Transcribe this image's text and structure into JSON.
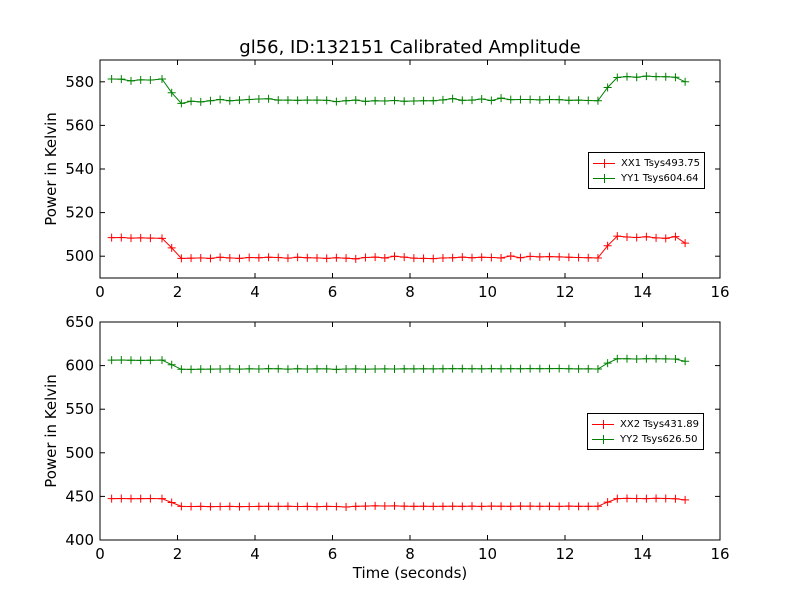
{
  "title": "gl56, ID:132151 Calibrated Amplitude",
  "colors": {
    "red": "#ff0000",
    "green": "#008000"
  },
  "chart_data": [
    {
      "type": "line",
      "ylabel": "Power in Kelvin",
      "xlabel": "",
      "xlim": [
        0,
        16
      ],
      "ylim": [
        490,
        590
      ],
      "xticks": [
        "0",
        "2",
        "4",
        "6",
        "8",
        "10",
        "12",
        "14",
        "16"
      ],
      "yticks": [
        "500",
        "520",
        "540",
        "560",
        "580"
      ],
      "ytick_values": [
        500,
        520,
        540,
        560,
        580
      ],
      "legend_position": "center-right",
      "x": [
        0.3,
        0.55,
        0.8,
        1.05,
        1.3,
        1.6,
        1.85,
        2.1,
        2.35,
        2.6,
        2.85,
        3.1,
        3.35,
        3.6,
        3.85,
        4.1,
        4.35,
        4.6,
        4.85,
        5.1,
        5.35,
        5.6,
        5.85,
        6.1,
        6.35,
        6.6,
        6.85,
        7.1,
        7.35,
        7.6,
        7.85,
        8.1,
        8.35,
        8.6,
        8.85,
        9.1,
        9.35,
        9.6,
        9.85,
        10.1,
        10.35,
        10.6,
        10.85,
        11.1,
        11.35,
        11.6,
        11.85,
        12.1,
        12.35,
        12.6,
        12.85,
        13.1,
        13.35,
        13.6,
        13.85,
        14.1,
        14.35,
        14.6,
        14.85,
        15.1
      ],
      "series": [
        {
          "name": "XX1 Tsys493.75",
          "color": "red",
          "values": [
            508.5,
            508.6,
            508.3,
            508.4,
            508.3,
            508.2,
            503.8,
            499.0,
            499.1,
            499.2,
            499.0,
            499.5,
            499.2,
            499.0,
            499.4,
            499.3,
            499.5,
            499.4,
            499.1,
            499.5,
            499.3,
            499.2,
            499.0,
            499.3,
            499.1,
            498.8,
            499.4,
            499.6,
            499.2,
            500.0,
            499.6,
            499.1,
            499.0,
            498.9,
            499.2,
            499.3,
            499.6,
            499.3,
            499.5,
            499.4,
            499.2,
            500.1,
            499.3,
            499.9,
            499.7,
            499.8,
            499.7,
            499.5,
            499.4,
            499.3,
            499.2,
            504.8,
            509.2,
            508.8,
            508.6,
            508.9,
            508.4,
            508.2,
            509.0,
            506.0
          ]
        },
        {
          "name": "YY1 Tsys604.64",
          "color": "green",
          "values": [
            581.3,
            581.2,
            580.4,
            580.9,
            580.8,
            581.3,
            575.0,
            570.1,
            571.1,
            570.8,
            571.3,
            571.9,
            571.3,
            571.6,
            571.9,
            572.1,
            572.2,
            571.6,
            571.6,
            571.5,
            571.6,
            571.6,
            571.5,
            570.9,
            571.3,
            571.6,
            571.0,
            571.3,
            571.2,
            571.4,
            571.1,
            571.2,
            571.3,
            571.3,
            571.7,
            572.3,
            571.5,
            571.6,
            572.1,
            571.4,
            572.5,
            571.8,
            571.9,
            571.9,
            571.7,
            571.9,
            571.8,
            571.5,
            571.6,
            571.4,
            571.3,
            577.4,
            582.0,
            582.4,
            582.1,
            582.6,
            582.4,
            582.3,
            582.1,
            580.0
          ]
        }
      ]
    },
    {
      "type": "line",
      "ylabel": "Power in Kelvin",
      "xlabel": "Time (seconds)",
      "xlim": [
        0,
        16
      ],
      "ylim": [
        400,
        650
      ],
      "xticks": [
        "0",
        "2",
        "4",
        "6",
        "8",
        "10",
        "12",
        "14",
        "16"
      ],
      "yticks": [
        "400",
        "450",
        "500",
        "550",
        "600",
        "650"
      ],
      "ytick_values": [
        400,
        450,
        500,
        550,
        600,
        650
      ],
      "legend_position": "center-right",
      "x": [
        0.3,
        0.55,
        0.8,
        1.05,
        1.3,
        1.6,
        1.85,
        2.1,
        2.35,
        2.6,
        2.85,
        3.1,
        3.35,
        3.6,
        3.85,
        4.1,
        4.35,
        4.6,
        4.85,
        5.1,
        5.35,
        5.6,
        5.85,
        6.1,
        6.35,
        6.6,
        6.85,
        7.1,
        7.35,
        7.6,
        7.85,
        8.1,
        8.35,
        8.6,
        8.85,
        9.1,
        9.35,
        9.6,
        9.85,
        10.1,
        10.35,
        10.6,
        10.85,
        11.1,
        11.35,
        11.6,
        11.85,
        12.1,
        12.35,
        12.6,
        12.85,
        13.1,
        13.35,
        13.6,
        13.85,
        14.1,
        14.35,
        14.6,
        14.85,
        15.1
      ],
      "series": [
        {
          "name": "XX2 Tsys431.89",
          "color": "red",
          "values": [
            447.5,
            447.6,
            447.4,
            447.5,
            447.6,
            447.4,
            443.0,
            438.5,
            438.4,
            438.5,
            438.3,
            438.4,
            438.5,
            438.3,
            438.4,
            438.5,
            438.6,
            438.5,
            438.7,
            438.4,
            438.5,
            438.3,
            438.5,
            438.4,
            437.8,
            438.6,
            438.9,
            439.2,
            439.0,
            439.1,
            438.8,
            438.6,
            438.7,
            438.5,
            438.6,
            438.7,
            438.6,
            438.8,
            438.5,
            438.9,
            438.7,
            438.6,
            438.9,
            438.8,
            438.6,
            438.7,
            438.5,
            438.9,
            438.6,
            438.6,
            438.7,
            443.5,
            447.5,
            447.7,
            447.6,
            447.5,
            447.8,
            447.6,
            447.3,
            446.0
          ]
        },
        {
          "name": "YY2 Tsys626.50",
          "color": "green",
          "values": [
            606.3,
            606.4,
            606.1,
            606.0,
            606.2,
            606.3,
            601.0,
            595.8,
            595.6,
            595.9,
            596.0,
            596.1,
            596.2,
            596.0,
            596.3,
            596.1,
            596.5,
            596.4,
            596.0,
            596.4,
            596.1,
            596.3,
            596.2,
            595.6,
            596.1,
            596.2,
            596.0,
            596.1,
            596.2,
            596.1,
            596.3,
            596.2,
            596.3,
            596.2,
            596.4,
            596.5,
            596.5,
            596.4,
            596.3,
            596.5,
            596.4,
            596.5,
            596.4,
            596.6,
            596.5,
            596.6,
            596.7,
            596.4,
            596.2,
            596.3,
            596.1,
            602.8,
            607.8,
            607.8,
            607.6,
            607.8,
            607.9,
            607.7,
            607.5,
            605.0
          ]
        }
      ]
    }
  ]
}
